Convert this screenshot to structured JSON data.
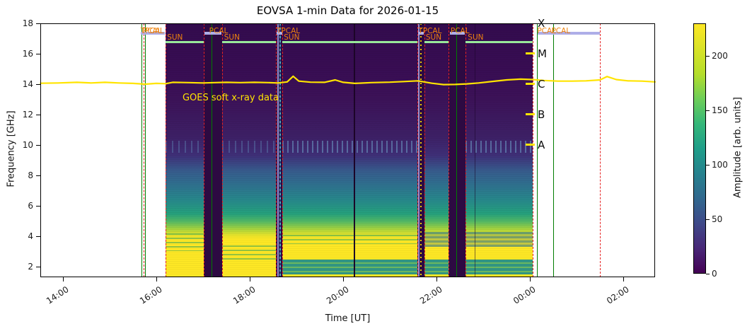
{
  "chart_data": {
    "type": "heatmap",
    "title": "EOVSA 1-min Data for 2026-01-15",
    "xlabel": "Time [UT]",
    "ylabel": "Frequency [GHz]",
    "x_axis": {
      "unit": "hours_UT",
      "range": [
        13.52,
        26.68
      ],
      "ticks": [
        {
          "t": 14,
          "label": "14:00"
        },
        {
          "t": 16,
          "label": "16:00"
        },
        {
          "t": 18,
          "label": "18:00"
        },
        {
          "t": 20,
          "label": "20:00"
        },
        {
          "t": 22,
          "label": "22:00"
        },
        {
          "t": 24,
          "label": "00:00"
        },
        {
          "t": 26,
          "label": "02:00"
        }
      ]
    },
    "y_axis": {
      "unit": "GHz",
      "range": [
        1.3,
        18
      ],
      "ticks": [
        {
          "f": 18,
          "label": "18"
        },
        {
          "f": 16,
          "label": "16"
        },
        {
          "f": 14,
          "label": "14"
        },
        {
          "f": 12,
          "label": "12"
        },
        {
          "f": 10,
          "label": "10"
        },
        {
          "f": 8,
          "label": "8"
        },
        {
          "f": 6,
          "label": "6"
        },
        {
          "f": 4,
          "label": "4"
        },
        {
          "f": 2,
          "label": "2"
        }
      ]
    },
    "colorbar": {
      "label": "Amplitude [arb. units]",
      "colormap": "viridis",
      "vmin": 0,
      "vmax": 230,
      "ticks": [
        {
          "v": 0,
          "label": "0"
        },
        {
          "v": 50,
          "label": "50"
        },
        {
          "v": 100,
          "label": "100"
        },
        {
          "v": 150,
          "label": "150"
        },
        {
          "v": 200,
          "label": "200"
        }
      ]
    },
    "goes_overlay": {
      "label": "GOES soft x-ray data",
      "label_pos": {
        "t": 16.56,
        "ghz": 13.45
      },
      "points": [
        [
          13.52,
          14.06
        ],
        [
          13.9,
          14.08
        ],
        [
          14.3,
          14.12
        ],
        [
          14.6,
          14.08
        ],
        [
          14.9,
          14.12
        ],
        [
          15.2,
          14.08
        ],
        [
          15.5,
          14.05
        ],
        [
          15.76,
          14.0
        ],
        [
          16.0,
          14.05
        ],
        [
          16.2,
          14.03
        ],
        [
          16.35,
          14.12
        ],
        [
          16.7,
          14.1
        ],
        [
          17.0,
          14.08
        ],
        [
          17.25,
          14.1
        ],
        [
          17.5,
          14.12
        ],
        [
          17.8,
          14.1
        ],
        [
          18.1,
          14.12
        ],
        [
          18.4,
          14.1
        ],
        [
          18.6,
          14.08
        ],
        [
          18.8,
          14.15
        ],
        [
          18.93,
          14.52
        ],
        [
          19.05,
          14.2
        ],
        [
          19.3,
          14.13
        ],
        [
          19.6,
          14.12
        ],
        [
          19.83,
          14.28
        ],
        [
          20.0,
          14.12
        ],
        [
          20.25,
          14.05
        ],
        [
          20.6,
          14.1
        ],
        [
          21.0,
          14.13
        ],
        [
          21.3,
          14.17
        ],
        [
          21.6,
          14.22
        ],
        [
          21.9,
          14.06
        ],
        [
          22.15,
          13.97
        ],
        [
          22.4,
          13.98
        ],
        [
          22.65,
          14.02
        ],
        [
          22.9,
          14.08
        ],
        [
          23.2,
          14.18
        ],
        [
          23.5,
          14.28
        ],
        [
          23.8,
          14.33
        ],
        [
          24.06,
          14.3
        ],
        [
          24.3,
          14.24
        ],
        [
          24.6,
          14.2
        ],
        [
          24.9,
          14.2
        ],
        [
          25.2,
          14.22
        ],
        [
          25.5,
          14.28
        ],
        [
          25.65,
          14.5
        ],
        [
          25.85,
          14.3
        ],
        [
          26.1,
          14.22
        ],
        [
          26.4,
          14.2
        ],
        [
          26.68,
          14.15
        ]
      ]
    },
    "flare_classes": [
      {
        "label": "X",
        "ghz": 18,
        "tick": false
      },
      {
        "label": "M",
        "ghz": 16,
        "tick": true
      },
      {
        "label": "C",
        "ghz": 14,
        "tick": true
      },
      {
        "label": "B",
        "ghz": 12,
        "tick": true
      },
      {
        "label": "A",
        "ghz": 10,
        "tick": true
      }
    ],
    "observations": {
      "sun_blocks": [
        {
          "t0": 16.197,
          "t1": 17.015,
          "bands": [
            {
              "f0": 10.3,
              "f1": 9.5,
              "cls": "speckle2"
            },
            {
              "f0": 4.2,
              "f1": 3.0,
              "cls": "streaks"
            }
          ]
        },
        {
          "t0": 17.409,
          "t1": 18.56,
          "bands": [
            {
              "f0": 10.3,
              "f1": 9.5,
              "cls": "speckle2"
            },
            {
              "f0": 3.4,
              "f1": 2.4,
              "cls": "streaks"
            }
          ]
        },
        {
          "t0": 18.696,
          "t1": 21.591,
          "bands": [
            {
              "f0": 10.3,
              "f1": 9.5,
              "cls": "speckle"
            },
            {
              "f0": 2.45,
              "f1": 1.5,
              "cls": "teal"
            },
            {
              "f0": 4.1,
              "f1": 3.5,
              "cls": "streaks"
            }
          ]
        },
        {
          "t0": 21.742,
          "t1": 22.258,
          "bands": [
            {
              "f0": 2.45,
              "f1": 1.5,
              "cls": "teal"
            },
            {
              "f0": 4.3,
              "f1": 3.3,
              "cls": "darkteal"
            }
          ]
        },
        {
          "t0": 22.621,
          "t1": 24.06,
          "bands": [
            {
              "f0": 10.3,
              "f1": 9.5,
              "cls": "speckle"
            },
            {
              "f0": 2.45,
              "f1": 1.5,
              "cls": "teal"
            },
            {
              "f0": 4.3,
              "f1": 3.3,
              "cls": "darkteal"
            }
          ]
        }
      ],
      "cal_gaps": [
        [
          17.015,
          17.409
        ],
        [
          18.56,
          18.696
        ],
        [
          21.591,
          21.742
        ],
        [
          22.258,
          22.621
        ]
      ],
      "sun_bar_ghz": 16.8,
      "pcal_bar_ghz": 17.35,
      "pcal_bars": [
        [
          15.67,
          16.18
        ],
        [
          17.03,
          17.4
        ],
        [
          18.575,
          18.69
        ],
        [
          21.6,
          21.73
        ],
        [
          22.29,
          22.61
        ],
        [
          24.16,
          25.5
        ]
      ],
      "green_lines": [
        15.681,
        15.757,
        17.182,
        22.424,
        24.151,
        24.5
      ],
      "red_lines": [
        15.72,
        16.197,
        17.015,
        17.409,
        18.56,
        18.696,
        21.591,
        21.742,
        22.258,
        22.621,
        24.06,
        25.5
      ],
      "columns": [
        {
          "t": 18.605,
          "cls": "col-lavender"
        },
        {
          "t": 18.65,
          "cls": "col-teal"
        },
        {
          "t": 21.62,
          "cls": "col-lavender"
        },
        {
          "t": 21.67,
          "cls": "col-ydots"
        },
        {
          "t": 20.243,
          "cls": "col-dark"
        },
        {
          "t": 22.83,
          "cls": "col-dark-faint"
        }
      ],
      "cal_labels": [
        {
          "text": "TPCAL",
          "t": 15.66
        },
        {
          "text": "PCAL",
          "t": 15.71
        },
        {
          "text": "PCAL",
          "t": 17.13
        },
        {
          "text": "TPCAL",
          "t": 18.575
        },
        {
          "text": "TPCAL",
          "t": 21.61
        },
        {
          "text": "PCAL",
          "t": 22.3
        },
        {
          "text": "PCAL",
          "t": 24.155
        },
        {
          "text": "PCAL",
          "t": 24.46
        }
      ],
      "sun_labels": [
        {
          "text": "SUN",
          "t": 16.23
        },
        {
          "text": "SUN",
          "t": 17.45
        },
        {
          "text": "SUN",
          "t": 18.73
        },
        {
          "text": "SUN",
          "t": 21.77
        },
        {
          "text": "SUN",
          "t": 22.67
        }
      ]
    },
    "colors": {
      "sun_bar": "#98e89a",
      "pcal_bar": "#aeaee8",
      "cal_label": "#ee820e",
      "green_line": "#007d00",
      "red_line": "#e62222",
      "goes": "#ffe400",
      "flare_tick": "#ffe400"
    }
  }
}
